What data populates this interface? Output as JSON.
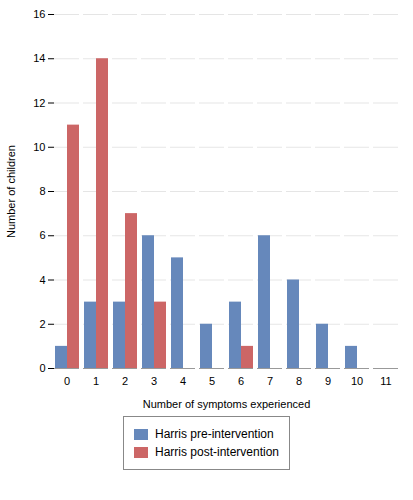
{
  "chart_data": {
    "type": "bar",
    "categories": [
      "0",
      "1",
      "2",
      "3",
      "4",
      "5",
      "6",
      "7",
      "8",
      "9",
      "10",
      "11"
    ],
    "series": [
      {
        "name": "Harris pre-intervention",
        "color": "#6688BB",
        "values": [
          1,
          3,
          3,
          6,
          5,
          2,
          3,
          6,
          4,
          2,
          1,
          0
        ]
      },
      {
        "name": "Harris post-intervention",
        "color": "#CC6666",
        "values": [
          11,
          14,
          7,
          3,
          0,
          0,
          1,
          0,
          0,
          0,
          0,
          0
        ]
      }
    ],
    "xlabel": "Number of symptoms experienced",
    "ylabel": "Number of children",
    "ylim": [
      0,
      16
    ],
    "yticks": [
      0,
      2,
      4,
      6,
      8,
      10,
      12,
      14,
      16
    ],
    "grid": true,
    "legend": "bottom"
  }
}
